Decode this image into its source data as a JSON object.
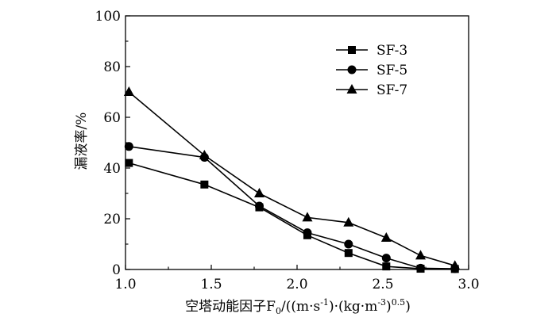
{
  "chart_data": {
    "type": "line",
    "title": "",
    "xlabel": "空塔动能因子F0/((m·s⁻¹)·(kg·m⁻³)⁰·⁵)",
    "xlabel_parts": {
      "prefix": "空塔动能因子F",
      "sub": "0",
      "mid1": "/((m·s",
      "sup1": "-1",
      "mid2": ")·(kg·m",
      "sup2": "-3",
      "mid3": ")",
      "sup3": "0.5",
      "suffix": ")"
    },
    "ylabel": "漏液率/%",
    "xlim": [
      1.0,
      3.0
    ],
    "ylim": [
      0,
      100
    ],
    "xticks": [
      "1.0",
      "1.5",
      "2.0",
      "2.5",
      "3.0"
    ],
    "yticks": [
      "0",
      "20",
      "40",
      "60",
      "80",
      "100"
    ],
    "grid": false,
    "legend_position": "top-right",
    "series": [
      {
        "name": "SF-3",
        "marker": "square",
        "x": [
          1.02,
          1.46,
          1.78,
          2.06,
          2.3,
          2.52,
          2.72,
          2.92
        ],
        "y": [
          42,
          33.5,
          24.5,
          13.5,
          6.5,
          1.2,
          0.3,
          0.2
        ]
      },
      {
        "name": "SF-5",
        "marker": "circle",
        "x": [
          1.02,
          1.46,
          1.78,
          2.06,
          2.3,
          2.52,
          2.72,
          2.92
        ],
        "y": [
          48.5,
          44.2,
          25,
          14.5,
          10,
          4.5,
          0.5,
          0.3
        ]
      },
      {
        "name": "SF-7",
        "marker": "triangle",
        "x": [
          1.02,
          1.46,
          1.78,
          2.06,
          2.3,
          2.52,
          2.72,
          2.92
        ],
        "y": [
          70,
          45,
          30,
          20.5,
          18.5,
          12.5,
          5.5,
          1.5
        ]
      }
    ]
  }
}
